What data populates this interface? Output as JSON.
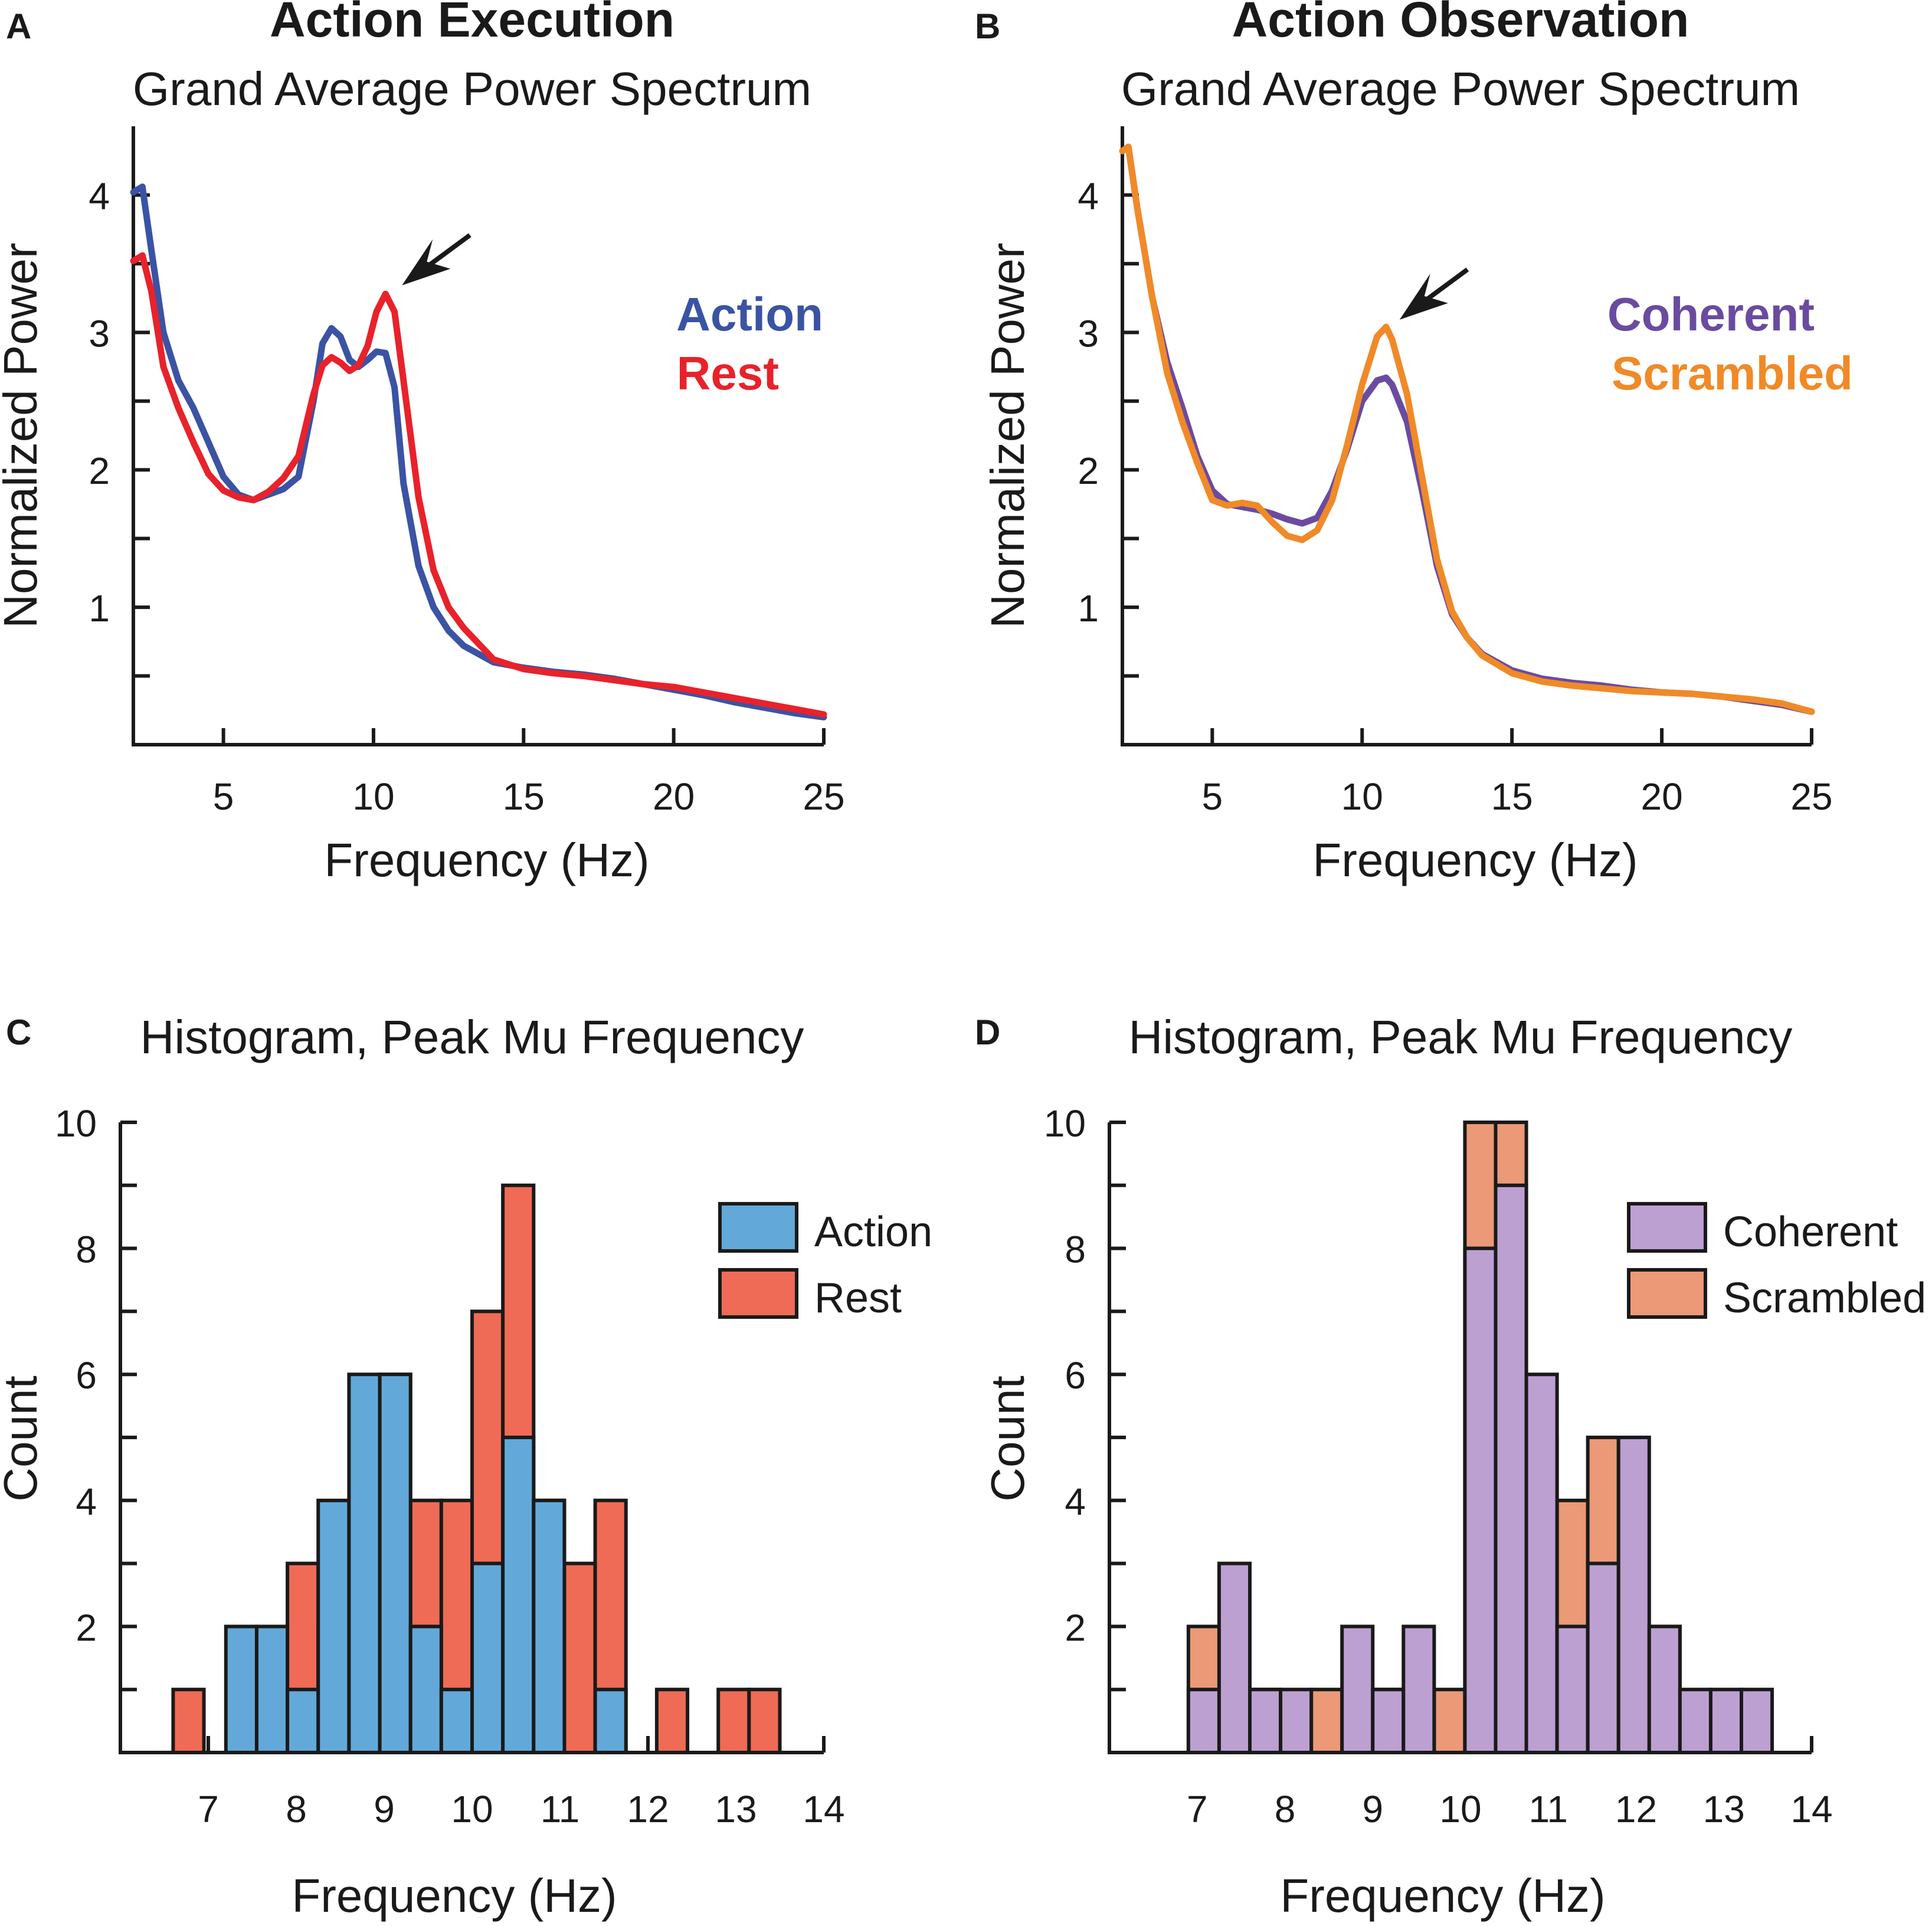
{
  "figure": {
    "panels": [
      {
        "letter": "A"
      },
      {
        "letter": "B"
      },
      {
        "letter": "C"
      },
      {
        "letter": "D"
      }
    ]
  },
  "chart_data": [
    {
      "panel": "A",
      "type": "line",
      "title": "Action Execution",
      "subtitle": "Grand Average Power Spectrum",
      "xlabel": "Frequency (Hz)",
      "ylabel": "Normalized Power",
      "xlim": [
        2,
        25
      ],
      "ylim": [
        0,
        4.5
      ],
      "xticks": [
        5,
        10,
        15,
        20,
        25
      ],
      "yticks": [
        1,
        2,
        3,
        4
      ],
      "yminor": [
        0.5,
        1.5,
        2.5,
        3.5
      ],
      "grid": false,
      "legend_position": "top-right",
      "arrow_peak": [
        10.4,
        3.3
      ],
      "x": [
        2.0,
        2.3,
        2.6,
        3.0,
        3.5,
        4.0,
        4.5,
        5.0,
        5.5,
        6.0,
        6.5,
        7.0,
        7.5,
        8.0,
        8.3,
        8.6,
        8.9,
        9.2,
        9.5,
        9.8,
        10.1,
        10.4,
        10.7,
        11.0,
        11.5,
        12.0,
        12.5,
        13.0,
        14.0,
        15.0,
        16.0,
        17.0,
        18.0,
        19.0,
        20.0,
        21.0,
        22.0,
        23.0,
        24.0,
        25.0
      ],
      "series": [
        {
          "name": "Action",
          "color": "#3a53a4",
          "values": [
            4.02,
            4.06,
            3.6,
            3.0,
            2.65,
            2.45,
            2.2,
            1.95,
            1.82,
            1.78,
            1.82,
            1.86,
            1.95,
            2.5,
            2.92,
            3.03,
            2.97,
            2.8,
            2.75,
            2.8,
            2.86,
            2.85,
            2.6,
            1.9,
            1.3,
            1.0,
            0.83,
            0.72,
            0.6,
            0.56,
            0.53,
            0.51,
            0.48,
            0.44,
            0.4,
            0.36,
            0.31,
            0.27,
            0.23,
            0.2
          ]
        },
        {
          "name": "Rest",
          "color": "#e8222b",
          "values": [
            3.52,
            3.56,
            3.3,
            2.75,
            2.45,
            2.2,
            1.97,
            1.85,
            1.8,
            1.78,
            1.84,
            1.94,
            2.1,
            2.55,
            2.76,
            2.82,
            2.78,
            2.72,
            2.76,
            2.9,
            3.15,
            3.28,
            3.15,
            2.65,
            1.8,
            1.27,
            1.0,
            0.85,
            0.62,
            0.55,
            0.52,
            0.5,
            0.47,
            0.44,
            0.42,
            0.38,
            0.34,
            0.3,
            0.26,
            0.22
          ]
        }
      ]
    },
    {
      "panel": "B",
      "type": "line",
      "title": "Action Observation",
      "subtitle": "Grand Average Power Spectrum",
      "xlabel": "Frequency (Hz)",
      "ylabel": "Normalized Power",
      "xlim": [
        2,
        25
      ],
      "ylim": [
        0,
        4.5
      ],
      "xticks": [
        5,
        10,
        15,
        20,
        25
      ],
      "yticks": [
        1,
        2,
        3,
        4
      ],
      "yminor": [
        0.5,
        1.5,
        2.5,
        3.5
      ],
      "grid": false,
      "legend_position": "top-right",
      "arrow_peak": [
        10.7,
        3.05
      ],
      "x": [
        2.0,
        2.2,
        2.5,
        3.0,
        3.5,
        4.0,
        4.5,
        5.0,
        5.5,
        6.0,
        6.5,
        7.0,
        7.5,
        8.0,
        8.5,
        9.0,
        9.5,
        10.0,
        10.5,
        10.8,
        11.0,
        11.5,
        12.0,
        12.5,
        13.0,
        13.5,
        14.0,
        15.0,
        16.0,
        17.0,
        18.0,
        19.0,
        20.0,
        21.0,
        22.0,
        23.0,
        24.0,
        25.0
      ],
      "series": [
        {
          "name": "Coherent",
          "color": "#6a4ba0",
          "values": [
            4.32,
            4.35,
            3.9,
            3.25,
            2.78,
            2.45,
            2.1,
            1.85,
            1.75,
            1.73,
            1.71,
            1.68,
            1.64,
            1.61,
            1.65,
            1.85,
            2.15,
            2.5,
            2.65,
            2.67,
            2.62,
            2.35,
            1.85,
            1.3,
            0.95,
            0.78,
            0.66,
            0.54,
            0.48,
            0.45,
            0.43,
            0.4,
            0.38,
            0.37,
            0.35,
            0.32,
            0.29,
            0.24
          ]
        },
        {
          "name": "Scrambled",
          "color": "#f08a28",
          "values": [
            4.32,
            4.35,
            3.9,
            3.25,
            2.7,
            2.35,
            2.05,
            1.78,
            1.74,
            1.76,
            1.74,
            1.62,
            1.52,
            1.49,
            1.56,
            1.78,
            2.18,
            2.62,
            2.97,
            3.04,
            2.95,
            2.55,
            1.95,
            1.35,
            0.97,
            0.78,
            0.65,
            0.52,
            0.46,
            0.43,
            0.41,
            0.39,
            0.38,
            0.37,
            0.35,
            0.33,
            0.3,
            0.24
          ]
        }
      ]
    },
    {
      "panel": "C",
      "type": "bar",
      "subtype": "histogram",
      "title": "Histogram, Peak Mu Frequency",
      "xlabel": "Frequency (Hz)",
      "ylabel": "Count",
      "xlim": [
        6.0,
        14.0
      ],
      "ylim": [
        0,
        10
      ],
      "xticks": [
        7,
        8,
        9,
        10,
        11,
        12,
        13,
        14
      ],
      "yticks": [
        2,
        4,
        6,
        8,
        10
      ],
      "yminor": [
        1,
        3,
        5,
        7,
        9
      ],
      "bin_width": 0.35,
      "grid": false,
      "legend_position": "top-right",
      "series": [
        {
          "name": "Action",
          "color": "#62a9d9",
          "bin_starts": [
            7.2,
            7.55,
            7.9,
            8.25,
            8.6,
            8.95,
            9.3,
            9.65,
            10.0,
            10.35,
            10.7,
            11.05,
            11.4,
            11.75,
            12.1,
            12.45,
            12.8,
            13.15
          ],
          "values": [
            2,
            2,
            1,
            4,
            6,
            6,
            2,
            1,
            3,
            5,
            4,
            0,
            1,
            0,
            0,
            0,
            0,
            0
          ]
        },
        {
          "name": "Rest",
          "color": "#ef6b56",
          "bin_starts": [
            6.6,
            7.2,
            7.55,
            7.9,
            8.25,
            8.6,
            8.95,
            9.3,
            9.65,
            10.0,
            10.35,
            10.7,
            11.05,
            11.4,
            11.75,
            12.1,
            12.45,
            12.8,
            13.15
          ],
          "values": [
            1,
            0,
            0,
            3,
            2,
            4,
            6,
            4,
            4,
            7,
            9,
            4,
            3,
            4,
            0,
            1,
            0,
            1,
            1
          ]
        }
      ]
    },
    {
      "panel": "D",
      "type": "bar",
      "subtype": "histogram",
      "title": "Histogram, Peak Mu Frequency",
      "xlabel": "Frequency (Hz)",
      "ylabel": "Count",
      "xlim": [
        6.0,
        14.0
      ],
      "ylim": [
        0,
        10
      ],
      "xticks": [
        7,
        8,
        9,
        10,
        11,
        12,
        13,
        14
      ],
      "yticks": [
        2,
        4,
        6,
        8,
        10
      ],
      "yminor": [
        1,
        3,
        5,
        7,
        9
      ],
      "bin_width": 0.35,
      "grid": false,
      "legend_position": "top-right",
      "series": [
        {
          "name": "Coherent",
          "color": "#bda0d2",
          "bin_starts": [
            6.9,
            7.25,
            7.6,
            7.95,
            8.3,
            8.65,
            9.0,
            9.35,
            9.7,
            10.05,
            10.4,
            10.75,
            11.1,
            11.45,
            11.8,
            12.15,
            12.5,
            12.85,
            13.2
          ],
          "values": [
            1,
            3,
            1,
            1,
            0,
            2,
            1,
            2,
            0,
            8,
            9,
            6,
            2,
            3,
            5,
            2,
            1,
            1,
            1
          ]
        },
        {
          "name": "Scrambled",
          "color": "#eb9977",
          "bin_starts": [
            6.9,
            7.6,
            7.95,
            8.3,
            8.65,
            9.0,
            9.35,
            9.7,
            10.05,
            10.4,
            10.75,
            11.1,
            11.45,
            11.8,
            12.15,
            12.5,
            12.85
          ],
          "values": [
            2,
            1,
            0,
            1,
            0,
            1,
            0,
            1,
            10,
            10,
            5,
            4,
            5,
            0,
            2,
            0,
            0
          ]
        }
      ]
    }
  ]
}
